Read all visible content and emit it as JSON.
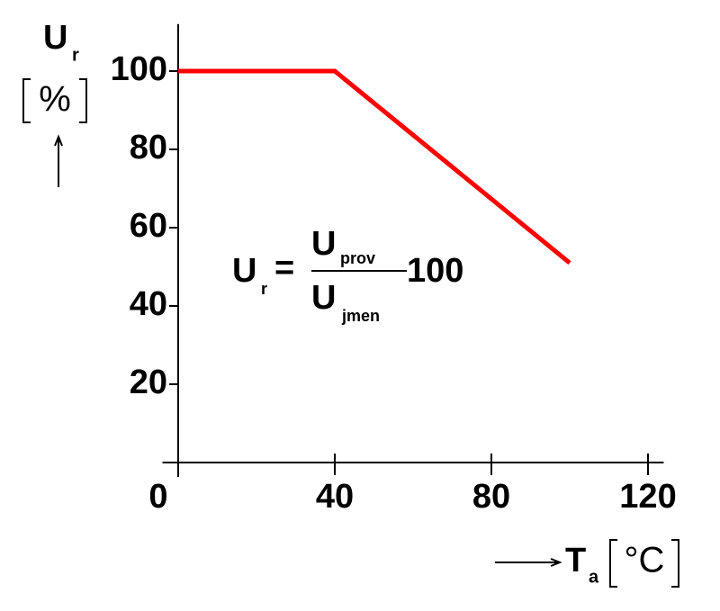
{
  "chart_data": {
    "type": "line",
    "x": [
      0,
      40,
      100
    ],
    "series": [
      {
        "name": "U_r",
        "color": "#ff0000",
        "values": [
          100,
          100,
          51
        ]
      }
    ],
    "xlim": [
      -4,
      124
    ],
    "xticks": [
      0,
      40,
      80,
      120
    ],
    "ylim": [
      0,
      112
    ],
    "yticks": [
      20,
      40,
      60,
      80,
      100
    ],
    "y_label": {
      "symbol": "U",
      "subscript": "r",
      "unit": "%"
    },
    "x_label": {
      "symbol": "T",
      "subscript": "a",
      "unit": "°C"
    },
    "annotation": {
      "lhs": "U",
      "lhs_sub": "r",
      "eq": "=",
      "num": "U",
      "num_sub": "prov",
      "den": "U",
      "den_sub": "jmen",
      "factor": "100"
    }
  }
}
